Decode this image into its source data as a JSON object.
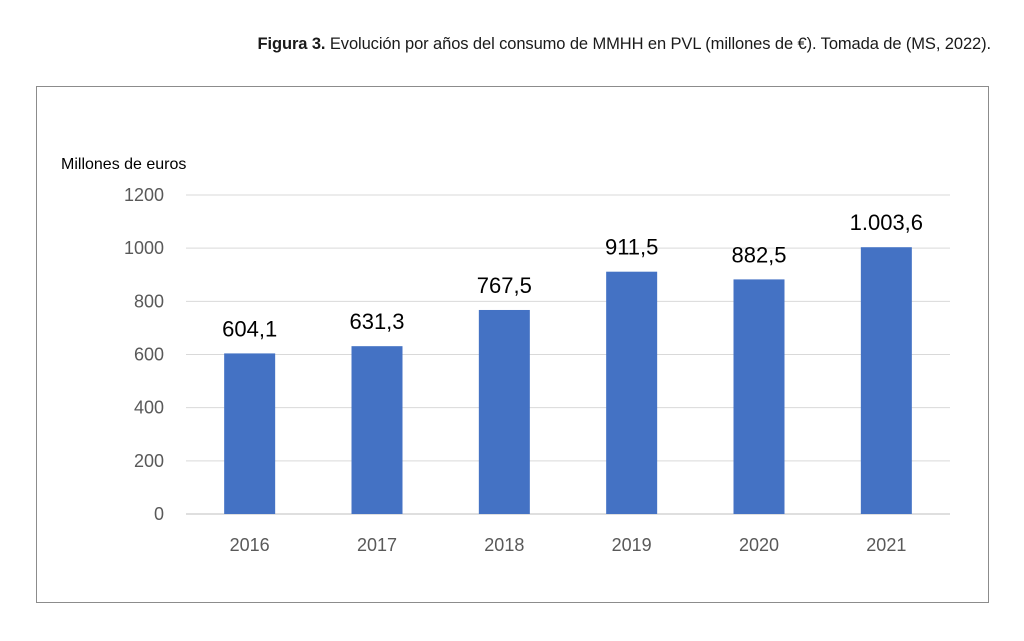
{
  "caption": {
    "label": "Figura 3.",
    "text": "Evolución por años del consumo de MMHH en PVL (millones de €). Tomada de (MS, 2022)."
  },
  "colors": {
    "bar": "#4472C4",
    "grid": "#d9d9d9",
    "axis": "#bfbfbf"
  },
  "chart_data": {
    "type": "bar",
    "title": "",
    "xlabel": "",
    "ylabel": "Millones de euros",
    "categories": [
      "2016",
      "2017",
      "2018",
      "2019",
      "2020",
      "2021"
    ],
    "values": [
      604.1,
      631.3,
      767.5,
      911.5,
      882.5,
      1003.6
    ],
    "data_labels": [
      "604,1",
      "631,3",
      "767,5",
      "911,5",
      "882,5",
      "1.003,6"
    ],
    "ylim": [
      0,
      1200
    ],
    "yticks": [
      0,
      200,
      400,
      600,
      800,
      1000,
      1200
    ],
    "grid": true,
    "legend": "none"
  }
}
